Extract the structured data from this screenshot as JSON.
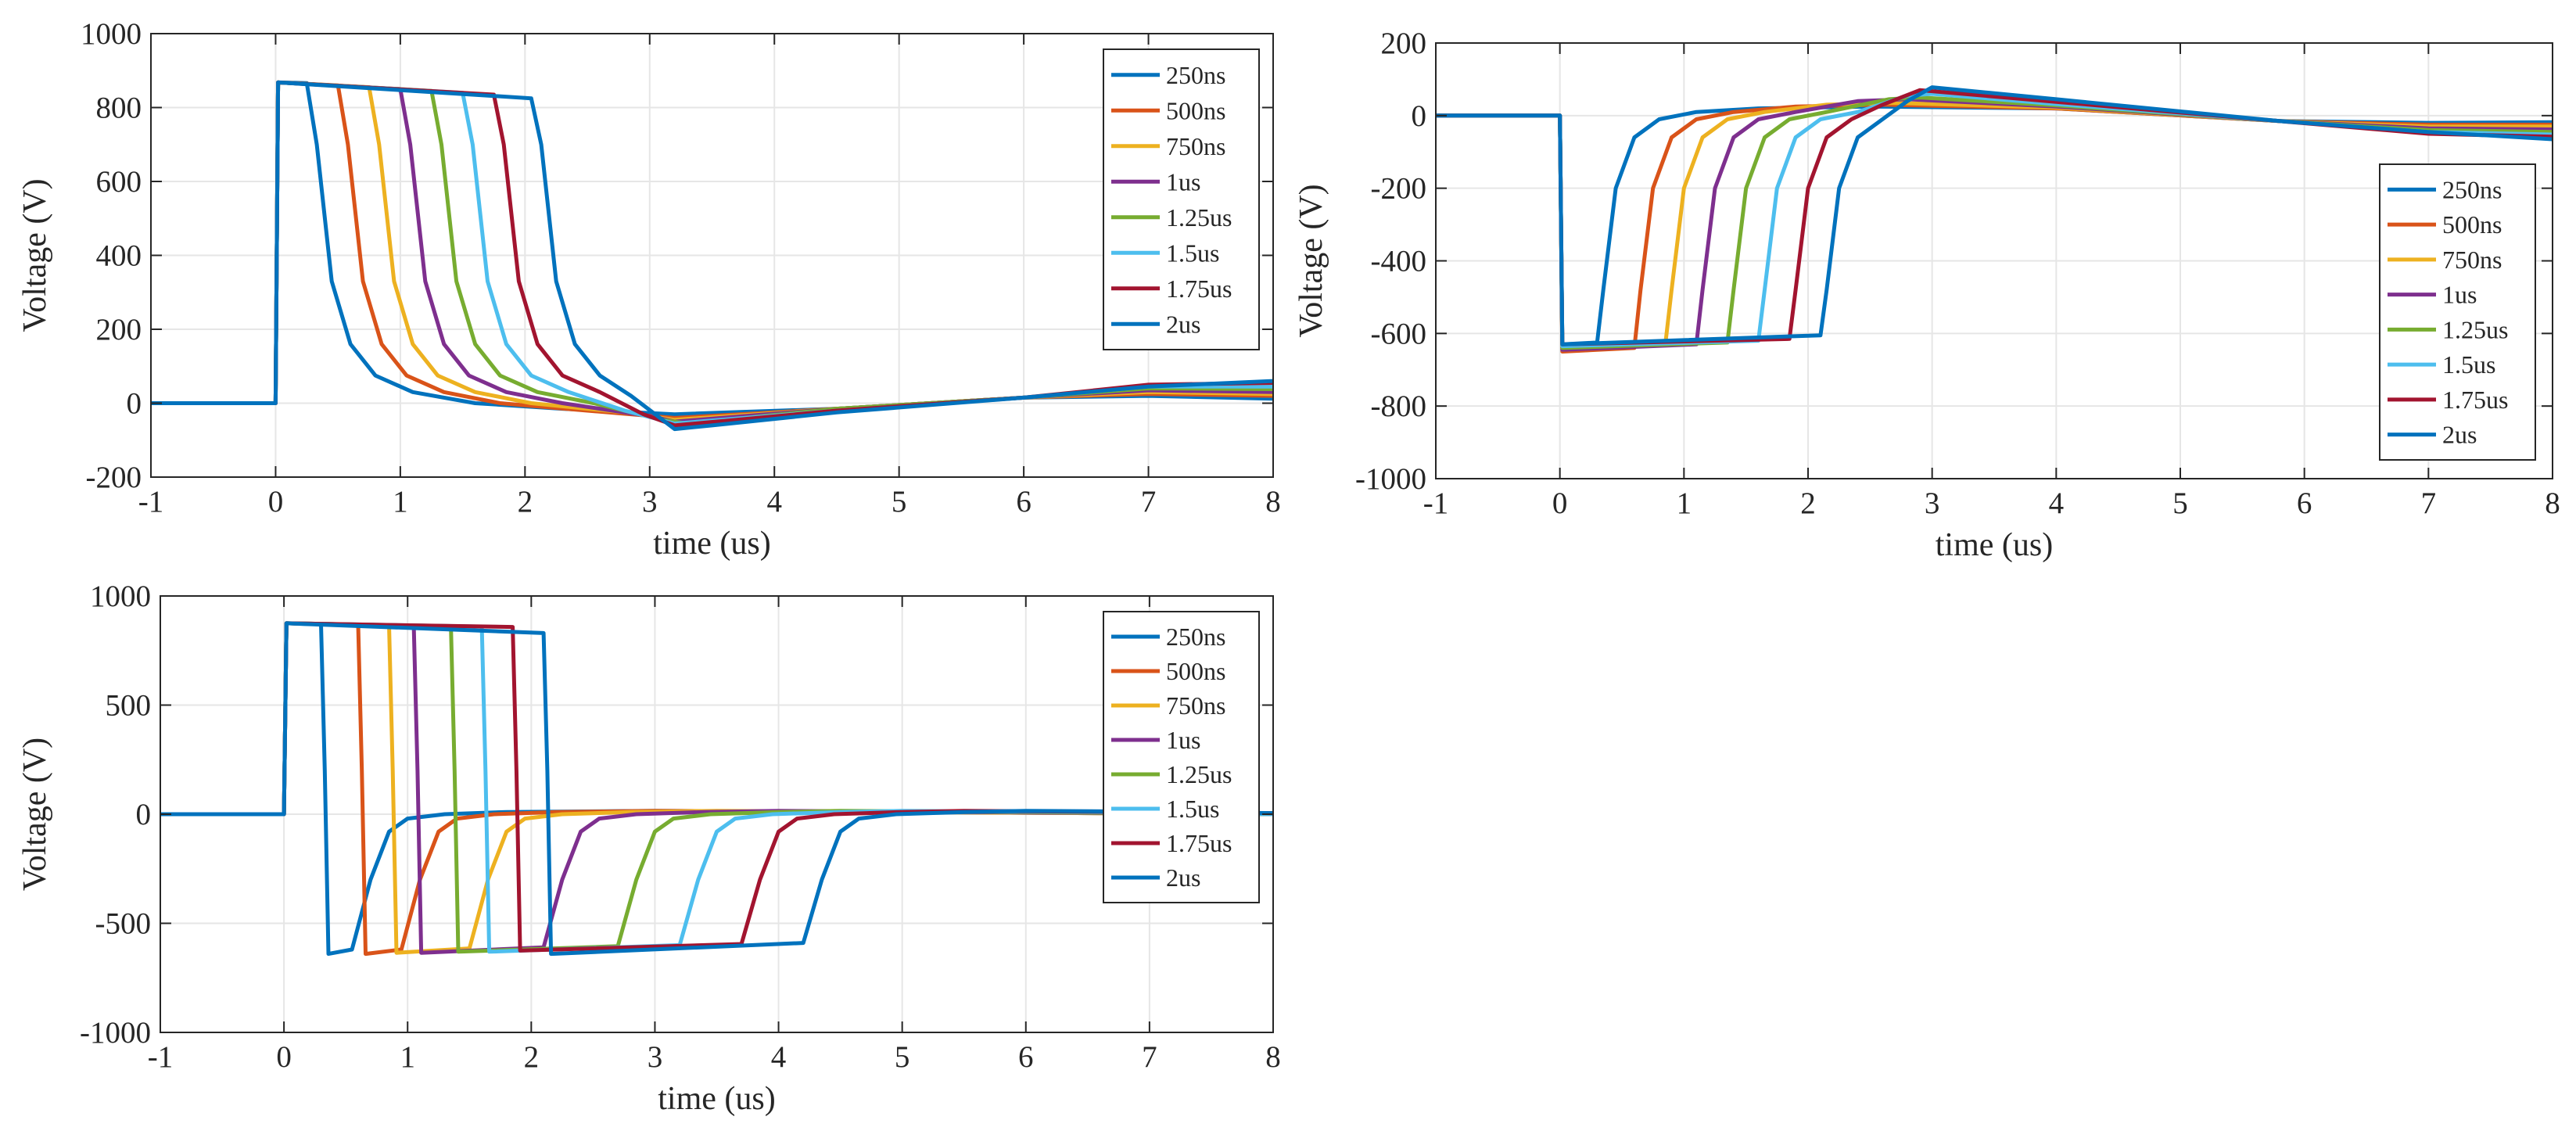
{
  "colors": {
    "s250ns": "#0072BD",
    "s500ns": "#D95319",
    "s750ns": "#EDB120",
    "s1us": "#7E2F8E",
    "s125us": "#77AC30",
    "s15us": "#4DBEEE",
    "s175us": "#A2142F",
    "s2us": "#0072BD",
    "grid": "#e6e6e6",
    "axis": "#262626"
  },
  "chart_data": [
    {
      "type": "line",
      "title": "",
      "xlabel": "time (us)",
      "ylabel": "Voltage (V)",
      "xlim": [
        -1,
        8
      ],
      "ylim": [
        -200,
        1000
      ],
      "xticks": [
        -1,
        0,
        1,
        2,
        3,
        4,
        5,
        6,
        7,
        8
      ],
      "yticks": [
        -200,
        0,
        200,
        400,
        600,
        800,
        1000
      ],
      "grid": true,
      "legend_position": "top-right",
      "series": [
        {
          "name": "250ns",
          "color_key": "s250ns",
          "x": [
            -1,
            0,
            0.02,
            0.25,
            0.33,
            0.45,
            0.6,
            0.8,
            1.1,
            1.6,
            2.3,
            3.2,
            4.5,
            6.0,
            7.0,
            8.0
          ],
          "y": [
            0,
            0,
            868,
            866,
            700,
            330,
            160,
            75,
            30,
            0,
            -15,
            -30,
            -15,
            15,
            20,
            12
          ]
        },
        {
          "name": "500ns",
          "color_key": "s500ns",
          "x": [
            -1,
            0,
            0.02,
            0.5,
            0.58,
            0.7,
            0.85,
            1.05,
            1.35,
            1.8,
            2.5,
            3.2,
            4.5,
            6.0,
            7.0,
            8.0
          ],
          "y": [
            0,
            0,
            868,
            860,
            700,
            330,
            160,
            75,
            30,
            0,
            -20,
            -40,
            -15,
            15,
            25,
            20
          ]
        },
        {
          "name": "750ns",
          "color_key": "s750ns",
          "x": [
            -1,
            0,
            0.02,
            0.75,
            0.83,
            0.95,
            1.1,
            1.3,
            1.6,
            2.05,
            2.8,
            3.2,
            4.5,
            6.0,
            7.0,
            8.0
          ],
          "y": [
            0,
            0,
            868,
            855,
            700,
            330,
            160,
            75,
            30,
            0,
            -25,
            -45,
            -15,
            15,
            30,
            25
          ]
        },
        {
          "name": "1us",
          "color_key": "s1us",
          "x": [
            -1,
            0,
            0.02,
            1.0,
            1.08,
            1.2,
            1.35,
            1.55,
            1.85,
            2.3,
            3.0,
            3.2,
            4.5,
            6.0,
            7.0,
            8.0
          ],
          "y": [
            0,
            0,
            868,
            850,
            700,
            330,
            160,
            75,
            30,
            0,
            -35,
            -50,
            -15,
            15,
            35,
            30
          ]
        },
        {
          "name": "1.25us",
          "color_key": "s125us",
          "x": [
            -1,
            0,
            0.02,
            1.25,
            1.33,
            1.45,
            1.6,
            1.8,
            2.1,
            2.55,
            3.1,
            3.3,
            4.5,
            6.0,
            7.0,
            8.0
          ],
          "y": [
            0,
            0,
            868,
            845,
            700,
            330,
            160,
            75,
            30,
            0,
            -45,
            -55,
            -15,
            15,
            40,
            38
          ]
        },
        {
          "name": "1.5us",
          "color_key": "s15us",
          "x": [
            -1,
            0,
            0.02,
            1.5,
            1.58,
            1.7,
            1.85,
            2.05,
            2.35,
            2.8,
            3.2,
            4.5,
            6.0,
            7.0,
            8.0
          ],
          "y": [
            0,
            0,
            868,
            840,
            700,
            330,
            160,
            75,
            30,
            -20,
            -55,
            -20,
            15,
            45,
            45
          ]
        },
        {
          "name": "1.75us",
          "color_key": "s175us",
          "x": [
            -1,
            0,
            0.02,
            1.75,
            1.83,
            1.95,
            2.1,
            2.3,
            2.6,
            2.95,
            3.2,
            4.5,
            6.0,
            7.0,
            8.0
          ],
          "y": [
            0,
            0,
            868,
            835,
            700,
            330,
            160,
            75,
            30,
            -30,
            -60,
            -20,
            15,
            50,
            55
          ]
        },
        {
          "name": "2us",
          "color_key": "s2us",
          "x": [
            -1,
            0,
            0.02,
            2.05,
            2.13,
            2.25,
            2.4,
            2.6,
            2.85,
            3.2,
            3.5,
            4.5,
            6.0,
            7.0,
            8.0
          ],
          "y": [
            0,
            0,
            868,
            825,
            700,
            330,
            160,
            75,
            20,
            -70,
            -60,
            -25,
            15,
            45,
            60
          ]
        }
      ]
    },
    {
      "type": "line",
      "title": "",
      "xlabel": "time (us)",
      "ylabel": "Voltage (V)",
      "xlim": [
        -1,
        8
      ],
      "ylim": [
        -1000,
        200
      ],
      "xticks": [
        -1,
        0,
        1,
        2,
        3,
        4,
        5,
        6,
        7,
        8
      ],
      "yticks": [
        -1000,
        -800,
        -600,
        -400,
        -200,
        0,
        200
      ],
      "grid": true,
      "legend_position": "right",
      "series": [
        {
          "name": "250ns",
          "color_key": "s250ns",
          "x": [
            -1,
            0,
            0.02,
            0.3,
            0.35,
            0.45,
            0.6,
            0.8,
            1.1,
            1.6,
            2.5,
            4.0,
            5.8,
            7.0,
            8.0
          ],
          "y": [
            0,
            0,
            -630,
            -625,
            -480,
            -200,
            -60,
            -10,
            10,
            20,
            25,
            20,
            -15,
            -20,
            -18
          ]
        },
        {
          "name": "500ns",
          "color_key": "s500ns",
          "x": [
            -1,
            0,
            0.02,
            0.6,
            0.65,
            0.75,
            0.9,
            1.1,
            1.4,
            1.9,
            2.6,
            4.0,
            5.8,
            7.0,
            8.0
          ],
          "y": [
            0,
            0,
            -650,
            -640,
            -480,
            -200,
            -60,
            -10,
            10,
            25,
            30,
            20,
            -15,
            -25,
            -25
          ]
        },
        {
          "name": "750ns",
          "color_key": "s750ns",
          "x": [
            -1,
            0,
            0.02,
            0.85,
            0.9,
            1.0,
            1.15,
            1.35,
            1.65,
            2.15,
            2.7,
            4.0,
            5.8,
            7.0,
            8.0
          ],
          "y": [
            0,
            0,
            -645,
            -630,
            -480,
            -200,
            -60,
            -10,
            10,
            30,
            35,
            22,
            -15,
            -30,
            -30
          ]
        },
        {
          "name": "1us",
          "color_key": "s1us",
          "x": [
            -1,
            0,
            0.02,
            1.1,
            1.15,
            1.25,
            1.4,
            1.6,
            1.9,
            2.4,
            2.8,
            4.0,
            5.8,
            7.0,
            8.0
          ],
          "y": [
            0,
            0,
            -645,
            -630,
            -480,
            -200,
            -60,
            -10,
            10,
            40,
            45,
            25,
            -15,
            -35,
            -38
          ]
        },
        {
          "name": "1.25us",
          "color_key": "s125us",
          "x": [
            -1,
            0,
            0.02,
            1.35,
            1.4,
            1.5,
            1.65,
            1.85,
            2.15,
            2.65,
            2.9,
            4.0,
            5.8,
            7.0,
            8.0
          ],
          "y": [
            0,
            0,
            -640,
            -625,
            -480,
            -200,
            -60,
            -10,
            10,
            45,
            50,
            28,
            -15,
            -40,
            -45
          ]
        },
        {
          "name": "1.5us",
          "color_key": "s15us",
          "x": [
            -1,
            0,
            0.02,
            1.6,
            1.65,
            1.75,
            1.9,
            2.1,
            2.4,
            2.8,
            3.0,
            4.0,
            5.8,
            7.0,
            8.0
          ],
          "y": [
            0,
            0,
            -635,
            -620,
            -480,
            -200,
            -60,
            -10,
            10,
            55,
            60,
            32,
            -15,
            -45,
            -52
          ]
        },
        {
          "name": "1.75us",
          "color_key": "s175us",
          "x": [
            -1,
            0,
            0.02,
            1.85,
            1.9,
            2.0,
            2.15,
            2.35,
            2.6,
            2.9,
            4.0,
            5.8,
            7.0,
            8.0
          ],
          "y": [
            0,
            0,
            -630,
            -615,
            -480,
            -200,
            -60,
            -10,
            30,
            70,
            38,
            -15,
            -50,
            -58
          ]
        },
        {
          "name": "2us",
          "color_key": "s2us",
          "x": [
            -1,
            0,
            0.02,
            2.1,
            2.15,
            2.25,
            2.4,
            2.6,
            2.8,
            3.0,
            4.0,
            5.8,
            7.0,
            8.0
          ],
          "y": [
            0,
            0,
            -630,
            -605,
            -480,
            -200,
            -60,
            -10,
            40,
            78,
            45,
            -15,
            -45,
            -65
          ]
        }
      ]
    },
    {
      "type": "line",
      "title": "",
      "xlabel": "time (us)",
      "ylabel": "Voltage (V)",
      "xlim": [
        -1,
        8
      ],
      "ylim": [
        -1000,
        1000
      ],
      "xticks": [
        -1,
        0,
        1,
        2,
        3,
        4,
        5,
        6,
        7,
        8
      ],
      "yticks": [
        -1000,
        -500,
        0,
        500,
        1000
      ],
      "grid": true,
      "legend_position": "top-right",
      "series": [
        {
          "name": "250ns",
          "color_key": "s250ns",
          "x": [
            -1,
            0,
            0.02,
            0.3,
            0.33,
            0.36,
            0.55,
            0.7,
            0.85,
            1.0,
            1.3,
            1.8,
            3.0,
            5.0,
            8.0
          ],
          "y": [
            0,
            0,
            875,
            870,
            200,
            -640,
            -620,
            -300,
            -80,
            -20,
            0,
            10,
            15,
            10,
            0
          ]
        },
        {
          "name": "500ns",
          "color_key": "s500ns",
          "x": [
            -1,
            0,
            0.02,
            0.6,
            0.63,
            0.66,
            0.95,
            1.1,
            1.25,
            1.4,
            1.7,
            2.2,
            3.0,
            5.0,
            8.0
          ],
          "y": [
            0,
            0,
            875,
            868,
            200,
            -640,
            -620,
            -300,
            -80,
            -20,
            0,
            10,
            15,
            10,
            0
          ]
        },
        {
          "name": "750ns",
          "color_key": "s750ns",
          "x": [
            -1,
            0,
            0.02,
            0.85,
            0.88,
            0.91,
            1.5,
            1.65,
            1.8,
            1.95,
            2.25,
            2.8,
            3.5,
            5.0,
            8.0
          ],
          "y": [
            0,
            0,
            875,
            866,
            200,
            -635,
            -615,
            -300,
            -80,
            -20,
            0,
            10,
            15,
            10,
            0
          ]
        },
        {
          "name": "1us",
          "color_key": "s1us",
          "x": [
            -1,
            0,
            0.02,
            1.05,
            1.08,
            1.11,
            2.1,
            2.25,
            2.4,
            2.55,
            2.85,
            3.4,
            4.0,
            5.5,
            8.0
          ],
          "y": [
            0,
            0,
            875,
            864,
            200,
            -635,
            -610,
            -300,
            -80,
            -20,
            0,
            10,
            15,
            10,
            0
          ]
        },
        {
          "name": "1.25us",
          "color_key": "s125us",
          "x": [
            -1,
            0,
            0.02,
            1.35,
            1.38,
            1.41,
            2.7,
            2.85,
            3.0,
            3.15,
            3.45,
            4.0,
            4.5,
            6.0,
            8.0
          ],
          "y": [
            0,
            0,
            875,
            862,
            200,
            -630,
            -605,
            -300,
            -80,
            -20,
            0,
            10,
            15,
            10,
            0
          ]
        },
        {
          "name": "1.5us",
          "color_key": "s15us",
          "x": [
            -1,
            0,
            0.02,
            1.6,
            1.63,
            1.66,
            3.2,
            3.35,
            3.5,
            3.65,
            3.95,
            4.5,
            5.0,
            6.5,
            8.0
          ],
          "y": [
            0,
            0,
            875,
            860,
            200,
            -630,
            -600,
            -300,
            -80,
            -20,
            0,
            10,
            15,
            10,
            0
          ]
        },
        {
          "name": "1.75us",
          "color_key": "s175us",
          "x": [
            -1,
            0,
            0.02,
            1.85,
            1.88,
            1.91,
            3.7,
            3.85,
            4.0,
            4.15,
            4.45,
            5.0,
            5.5,
            6.5,
            8.0
          ],
          "y": [
            0,
            0,
            875,
            858,
            200,
            -625,
            -595,
            -300,
            -80,
            -20,
            0,
            10,
            15,
            12,
            5
          ]
        },
        {
          "name": "2us",
          "color_key": "s2us",
          "x": [
            -1,
            0,
            0.02,
            2.1,
            2.13,
            2.16,
            4.2,
            4.35,
            4.5,
            4.65,
            4.95,
            5.5,
            6.0,
            7.0,
            8.0
          ],
          "y": [
            0,
            0,
            875,
            830,
            200,
            -640,
            -590,
            -300,
            -80,
            -20,
            0,
            10,
            15,
            12,
            5
          ]
        }
      ]
    }
  ]
}
